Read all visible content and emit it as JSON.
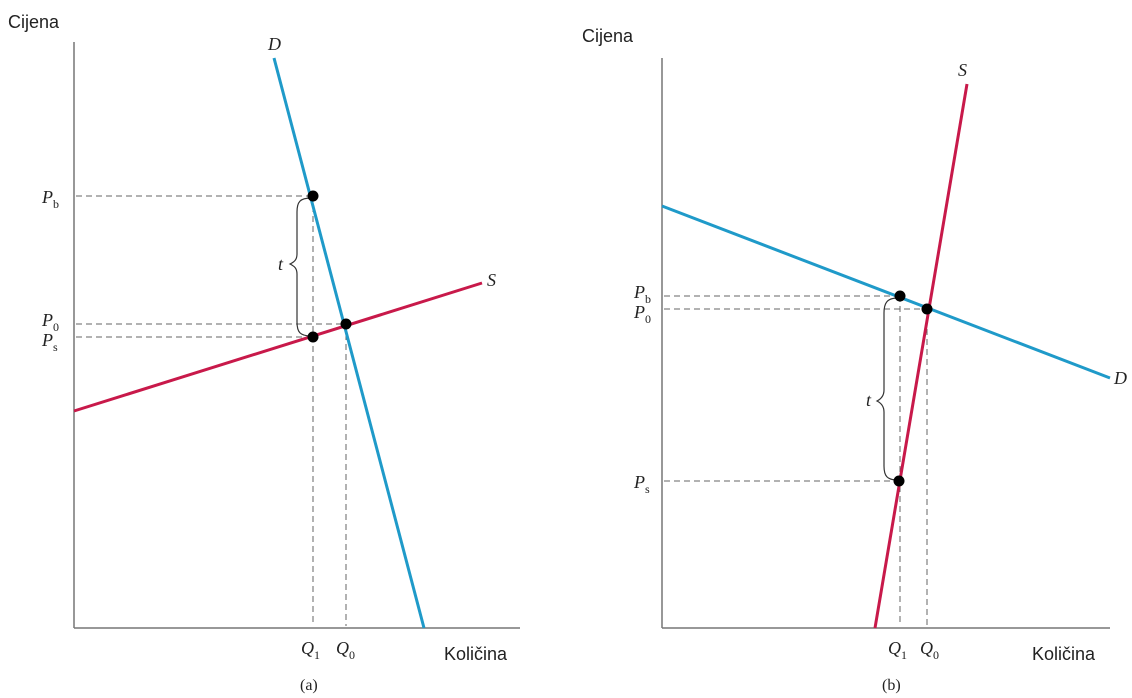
{
  "chart_data": [
    {
      "type": "line",
      "caption": "(a)",
      "ylabel": "Cijena",
      "xlabel": "Količina",
      "curves": [
        {
          "name": "D",
          "color": "#1f9ac9"
        },
        {
          "name": "S",
          "color": "#c8194a"
        }
      ],
      "price_labels": [
        {
          "main": "P",
          "sub": "b"
        },
        {
          "main": "P",
          "sub": "0"
        },
        {
          "main": "P",
          "sub": "s"
        }
      ],
      "quantity_labels": [
        {
          "main": "Q",
          "sub": "1"
        },
        {
          "main": "Q",
          "sub": "0"
        }
      ],
      "tax_label": "t"
    },
    {
      "type": "line",
      "caption": "(b)",
      "ylabel": "Cijena",
      "xlabel": "Količina",
      "curves": [
        {
          "name": "D",
          "color": "#1f9ac9"
        },
        {
          "name": "S",
          "color": "#c8194a"
        }
      ],
      "price_labels": [
        {
          "main": "P",
          "sub": "b"
        },
        {
          "main": "P",
          "sub": "0"
        },
        {
          "main": "P",
          "sub": "s"
        }
      ],
      "quantity_labels": [
        {
          "main": "Q",
          "sub": "1"
        },
        {
          "main": "Q",
          "sub": "0"
        }
      ],
      "tax_label": "t"
    }
  ]
}
